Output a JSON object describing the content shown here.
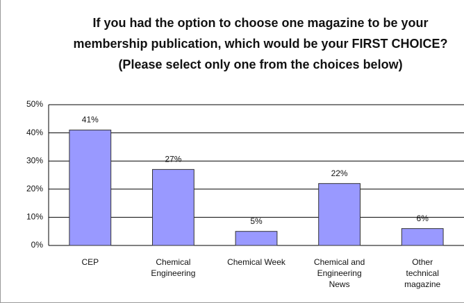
{
  "chart_data": {
    "type": "bar",
    "title": "If you had the option to choose one magazine to be your membership publication, which would be your FIRST CHOICE? (Please select only one from the choices below)",
    "categories": [
      "CEP",
      "Chemical Engineering",
      "Chemical Week",
      "Chemical and Engineering News",
      "Other technical magazine"
    ],
    "values": [
      41,
      27,
      5,
      22,
      6
    ],
    "value_labels": [
      "41%",
      "27%",
      "5%",
      "22%",
      "6%"
    ],
    "color": "#9999ff",
    "ylim": [
      0,
      50
    ],
    "yticks": [
      {
        "value": 0,
        "label": "0%"
      },
      {
        "value": 10,
        "label": "10%"
      },
      {
        "value": 20,
        "label": "20%"
      },
      {
        "value": 30,
        "label": "30%"
      },
      {
        "value": 40,
        "label": "40%"
      },
      {
        "value": 50,
        "label": "50%"
      }
    ],
    "grid": true
  }
}
